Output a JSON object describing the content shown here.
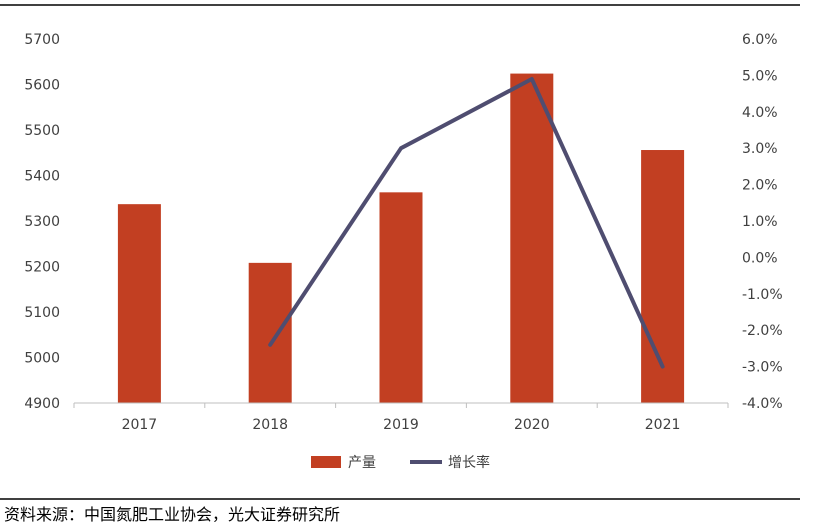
{
  "chart_data": {
    "type": "bar+line",
    "categories": [
      "2017",
      "2018",
      "2019",
      "2020",
      "2021"
    ],
    "series": [
      {
        "name": "产量",
        "type": "bar",
        "axis": "left",
        "color": "#C23F22",
        "values": [
          5337,
          5208,
          5363,
          5624,
          5456
        ]
      },
      {
        "name": "增长率",
        "type": "line",
        "axis": "right",
        "color": "#4F4D70",
        "values": [
          null,
          -2.4,
          3.0,
          4.9,
          -3.0
        ]
      }
    ],
    "left_axis": {
      "min": 4900,
      "max": 5700,
      "step": 100,
      "ticks": [
        "4900",
        "5000",
        "5100",
        "5200",
        "5300",
        "5400",
        "5500",
        "5600",
        "5700"
      ]
    },
    "right_axis": {
      "min": -4.0,
      "max": 6.0,
      "step": 1.0,
      "ticks": [
        "-4.0%",
        "-3.0%",
        "-2.0%",
        "-1.0%",
        "0.0%",
        "1.0%",
        "2.0%",
        "3.0%",
        "4.0%",
        "5.0%",
        "6.0%"
      ]
    },
    "legend_position": "bottom",
    "grid": false
  },
  "source_note": "资料来源：中国氮肥工业协会，光大证券研究所"
}
